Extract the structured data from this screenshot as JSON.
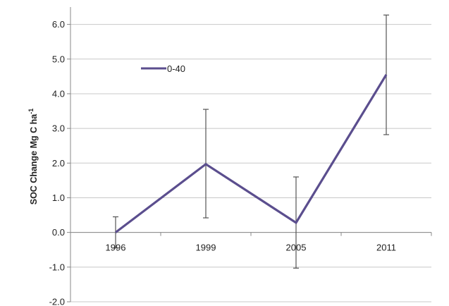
{
  "chart_data": {
    "type": "line",
    "title": "",
    "xlabel": "",
    "ylabel": "SOC Change Mg C ha",
    "ylabel_superscript": "-1",
    "categories": [
      "1996",
      "1999",
      "2005",
      "2011"
    ],
    "ylim": [
      -2.0,
      6.5
    ],
    "yticks": [
      -2.0,
      -1.0,
      0.0,
      1.0,
      2.0,
      3.0,
      4.0,
      5.0,
      6.0
    ],
    "ytick_labels": [
      "-2.0",
      "-1.0",
      "0.0",
      "1.0",
      "2.0",
      "3.0",
      "4.0",
      "5.0",
      "6.0"
    ],
    "grid": true,
    "legend_position": "top-left",
    "series": [
      {
        "name": "0-40",
        "color": "#5b4e8e",
        "values": [
          0.0,
          1.97,
          0.28,
          4.55
        ],
        "error_low": [
          -0.45,
          0.42,
          -1.03,
          2.82
        ],
        "error_high": [
          0.45,
          3.55,
          1.6,
          6.27
        ]
      }
    ]
  }
}
